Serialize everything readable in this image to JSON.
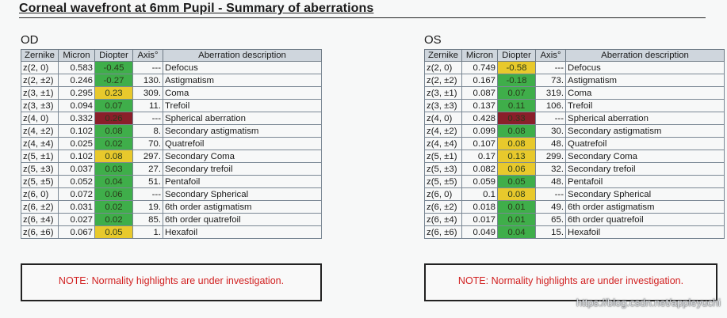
{
  "title": "Corneal wavefront at 6mm Pupil - Summary of aberrations",
  "headers": [
    "Zernike",
    "Micron",
    "Diopter",
    "Axis°",
    "Aberration description"
  ],
  "colors": {
    "green": "#3fae4a",
    "yellow": "#e8c92c",
    "red": "#8a1f2a"
  },
  "od": {
    "label": "OD",
    "rows": [
      {
        "z": "z(2,  0)",
        "micron": "0.583",
        "diopter": "-0.45",
        "level": "green",
        "axis": "---",
        "desc": "Defocus"
      },
      {
        "z": "z(2, ±2)",
        "micron": "0.246",
        "diopter": "-0.27",
        "level": "green",
        "axis": "130.",
        "desc": "Astigmatism"
      },
      {
        "z": "z(3, ±1)",
        "micron": "0.295",
        "diopter": "0.23",
        "level": "yellow",
        "axis": "309.",
        "desc": "Coma"
      },
      {
        "z": "z(3, ±3)",
        "micron": "0.094",
        "diopter": "0.07",
        "level": "green",
        "axis": "11.",
        "desc": "Trefoil"
      },
      {
        "z": "z(4,  0)",
        "micron": "0.332",
        "diopter": "0.26",
        "level": "red",
        "axis": "---",
        "desc": "Spherical aberration"
      },
      {
        "z": "z(4, ±2)",
        "micron": "0.102",
        "diopter": "0.08",
        "level": "green",
        "axis": "8.",
        "desc": "Secondary astigmatism"
      },
      {
        "z": "z(4, ±4)",
        "micron": "0.025",
        "diopter": "0.02",
        "level": "green",
        "axis": "70.",
        "desc": "Quatrefoil"
      },
      {
        "z": "z(5, ±1)",
        "micron": "0.102",
        "diopter": "0.08",
        "level": "yellow",
        "axis": "297.",
        "desc": "Secondary Coma"
      },
      {
        "z": "z(5, ±3)",
        "micron": "0.037",
        "diopter": "0.03",
        "level": "green",
        "axis": "27.",
        "desc": "Secondary trefoil"
      },
      {
        "z": "z(5, ±5)",
        "micron": "0.052",
        "diopter": "0.04",
        "level": "green",
        "axis": "51.",
        "desc": "Pentafoil"
      },
      {
        "z": "z(6,  0)",
        "micron": "0.072",
        "diopter": "0.06",
        "level": "green",
        "axis": "---",
        "desc": "Secondary Spherical"
      },
      {
        "z": "z(6, ±2)",
        "micron": "0.031",
        "diopter": "0.02",
        "level": "green",
        "axis": "19.",
        "desc": "6th order astigmatism"
      },
      {
        "z": "z(6, ±4)",
        "micron": "0.027",
        "diopter": "0.02",
        "level": "green",
        "axis": "85.",
        "desc": "6th order quatrefoil"
      },
      {
        "z": "z(6, ±6)",
        "micron": "0.067",
        "diopter": "0.05",
        "level": "yellow",
        "axis": "1.",
        "desc": "Hexafoil"
      }
    ],
    "note": "NOTE: Normality highlights are under investigation."
  },
  "os": {
    "label": "OS",
    "rows": [
      {
        "z": "z(2,  0)",
        "micron": "0.749",
        "diopter": "-0.58",
        "level": "yellow",
        "axis": "---",
        "desc": "Defocus"
      },
      {
        "z": "z(2, ±2)",
        "micron": "0.167",
        "diopter": "-0.18",
        "level": "green",
        "axis": "73.",
        "desc": "Astigmatism"
      },
      {
        "z": "z(3, ±1)",
        "micron": "0.087",
        "diopter": "0.07",
        "level": "green",
        "axis": "319.",
        "desc": "Coma"
      },
      {
        "z": "z(3, ±3)",
        "micron": "0.137",
        "diopter": "0.11",
        "level": "green",
        "axis": "106.",
        "desc": "Trefoil"
      },
      {
        "z": "z(4,  0)",
        "micron": "0.428",
        "diopter": "0.33",
        "level": "red",
        "axis": "---",
        "desc": "Spherical aberration"
      },
      {
        "z": "z(4, ±2)",
        "micron": "0.099",
        "diopter": "0.08",
        "level": "green",
        "axis": "30.",
        "desc": "Secondary astigmatism"
      },
      {
        "z": "z(4, ±4)",
        "micron": "0.107",
        "diopter": "0.08",
        "level": "yellow",
        "axis": "48.",
        "desc": "Quatrefoil"
      },
      {
        "z": "z(5, ±1)",
        "micron": "0.17",
        "diopter": "0.13",
        "level": "yellow",
        "axis": "299.",
        "desc": "Secondary Coma"
      },
      {
        "z": "z(5, ±3)",
        "micron": "0.082",
        "diopter": "0.06",
        "level": "yellow",
        "axis": "32.",
        "desc": "Secondary trefoil"
      },
      {
        "z": "z(5, ±5)",
        "micron": "0.059",
        "diopter": "0.05",
        "level": "green",
        "axis": "48.",
        "desc": "Pentafoil"
      },
      {
        "z": "z(6,  0)",
        "micron": "0.1",
        "diopter": "0.08",
        "level": "yellow",
        "axis": "---",
        "desc": "Secondary Spherical"
      },
      {
        "z": "z(6, ±2)",
        "micron": "0.018",
        "diopter": "0.01",
        "level": "green",
        "axis": "49.",
        "desc": "6th order astigmatism"
      },
      {
        "z": "z(6, ±4)",
        "micron": "0.017",
        "diopter": "0.01",
        "level": "green",
        "axis": "65.",
        "desc": "6th order quatrefoil"
      },
      {
        "z": "z(6, ±6)",
        "micron": "0.049",
        "diopter": "0.04",
        "level": "green",
        "axis": "15.",
        "desc": "Hexafoil"
      }
    ],
    "note": "NOTE: Normality highlights are under investigation."
  },
  "watermark": "https://blog.csdn.net/appleyuchi"
}
